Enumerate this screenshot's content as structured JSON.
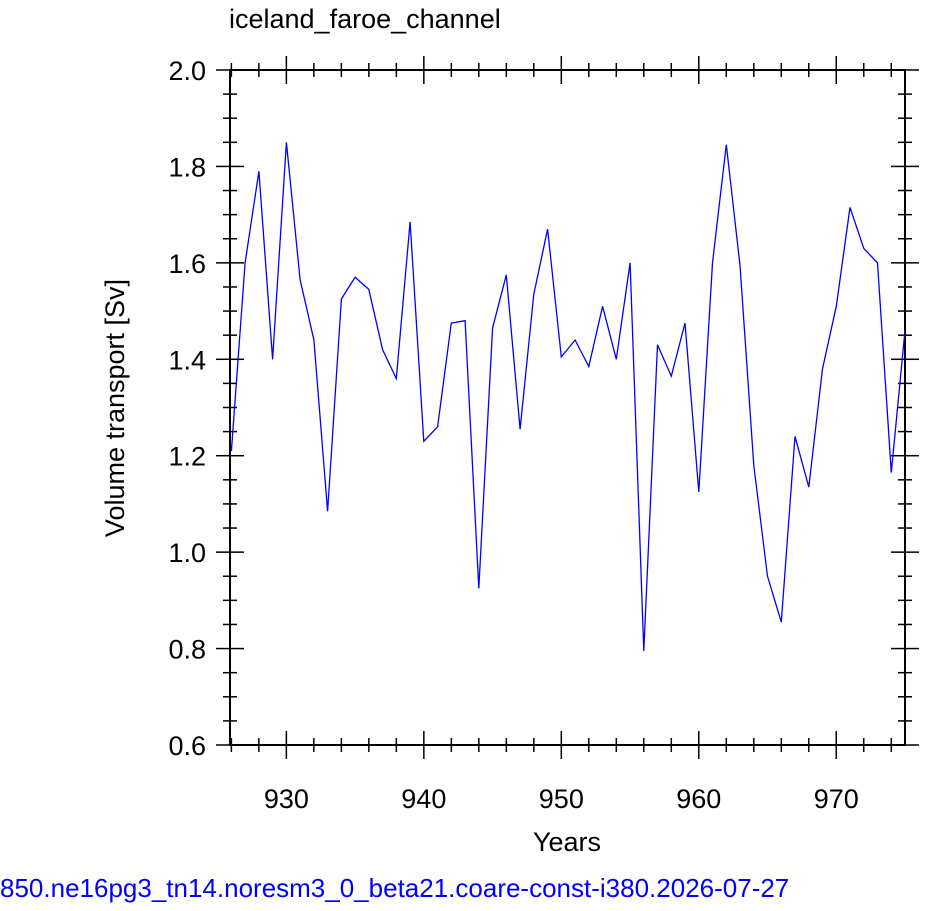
{
  "chart_data": {
    "type": "line",
    "title": "iceland_faroe_channel",
    "xlabel": "Years",
    "ylabel": "Volume transport [Sv]",
    "xlim": [
      925.9,
      975
    ],
    "ylim": [
      0.6,
      2.0
    ],
    "xticks": [
      930,
      940,
      950,
      960,
      970
    ],
    "yticks": [
      "0.6",
      "0.8",
      "1.0",
      "1.2",
      "1.4",
      "1.6",
      "1.8",
      "2.0"
    ],
    "grid": false,
    "series": [
      {
        "color": "#0000ff",
        "x": [
          926,
          927,
          928,
          929,
          930,
          931,
          932,
          933,
          934,
          935,
          936,
          937,
          938,
          939,
          940,
          941,
          942,
          943,
          944,
          945,
          946,
          947,
          948,
          949,
          950,
          951,
          952,
          953,
          954,
          955,
          956,
          957,
          958,
          959,
          960,
          961,
          962,
          963,
          964,
          965,
          966,
          967,
          968,
          969,
          970,
          971,
          972,
          973,
          974,
          975
        ],
        "y": [
          1.21,
          1.6,
          1.79,
          1.4,
          1.85,
          1.565,
          1.44,
          1.085,
          1.525,
          1.57,
          1.545,
          1.42,
          1.36,
          1.685,
          1.23,
          1.26,
          1.475,
          1.48,
          0.925,
          1.465,
          1.575,
          1.255,
          1.535,
          1.67,
          1.405,
          1.44,
          1.385,
          1.51,
          1.4,
          1.6,
          0.795,
          1.43,
          1.365,
          1.475,
          1.125,
          1.6,
          1.845,
          1.595,
          1.18,
          0.95,
          0.855,
          1.24,
          1.135,
          1.38,
          1.51,
          1.715,
          1.63,
          1.6,
          1.165,
          1.46
        ]
      }
    ]
  },
  "caption": "850.ne16pg3_tn14.noresm3_0_beta21.coare-const-i380.2026-07-27"
}
